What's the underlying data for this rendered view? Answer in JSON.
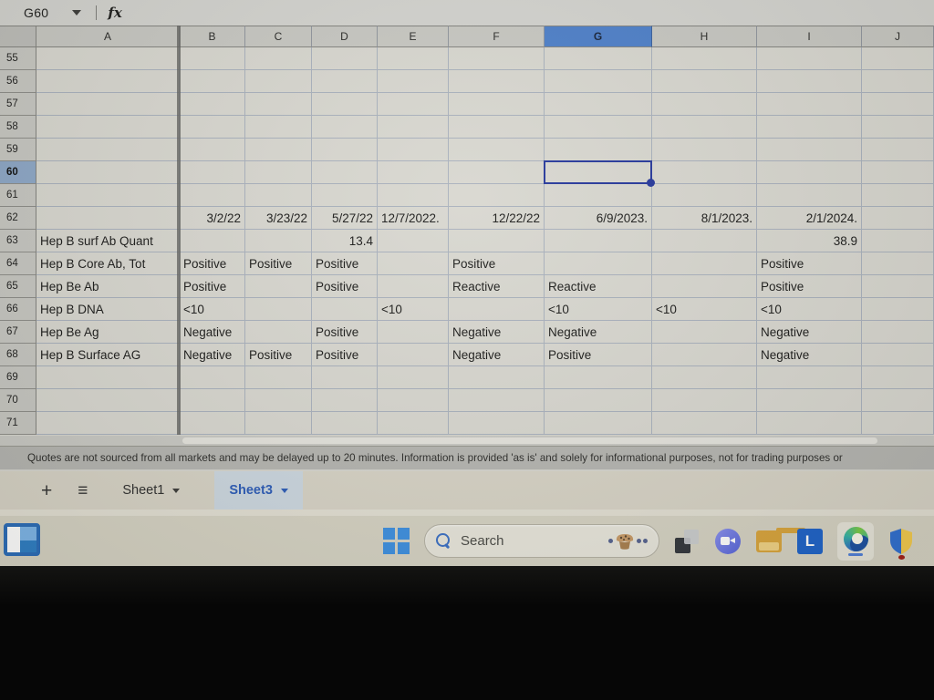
{
  "colors": {
    "accent_blue": "#4d7fc9",
    "selection_border": "#25379b",
    "row_header_selected": "#8da7c7",
    "tab_active_text": "#2b5bb7",
    "tab_active_bg": "#ccd7e0",
    "windows_blue": "#3d8fe0"
  },
  "formula_bar": {
    "namebox_value": "G60",
    "fx_label": "fx"
  },
  "sheet": {
    "columns": [
      "A",
      "B",
      "C",
      "D",
      "E",
      "F",
      "G",
      "H",
      "I",
      "J"
    ],
    "row_start": 55,
    "row_end": 71,
    "selected": {
      "col": "G",
      "row": 60,
      "cell_ref": "G60"
    },
    "frozen_after": "A",
    "cells": {
      "B62": "3/2/22",
      "C62": "3/23/22",
      "D62": "5/27/22",
      "E62": "12/7/2022.",
      "F62": "12/22/22",
      "G62": "6/9/2023.",
      "H62": "8/1/2023.",
      "I62": "2/1/2024.",
      "A63": "Hep B surf Ab Quant",
      "D63": "13.4",
      "I63": "38.9",
      "A64": "Hep B Core Ab, Tot",
      "B64": "Positive",
      "C64": "Positive",
      "D64": "Positive",
      "F64": "Positive",
      "I64": "Positive",
      "A65": "Hep Be Ab",
      "B65": "Positive",
      "D65": "Positive",
      "F65": "Reactive",
      "G65": "Reactive",
      "I65": "Positive",
      "A66": "Hep B DNA",
      "B66": "<10",
      "E66": "<10",
      "G66": "<10",
      "H66": "<10",
      "I66": "<10",
      "A67": "Hep Be Ag",
      "B67": "Negative",
      "D67": "Positive",
      "F67": "Negative",
      "G67": "Negative",
      "I67": "Negative",
      "A68": "Hep B Surface AG",
      "B68": "Negative",
      "C68": "Positive",
      "D68": "Positive",
      "F68": "Negative",
      "G68": "Positive",
      "I68": "Negative"
    },
    "right_aligned": [
      "B62",
      "C62",
      "D62",
      "F62",
      "G62",
      "H62",
      "I62",
      "D63",
      "I63"
    ]
  },
  "disclaimer": "Quotes are not sourced from all markets and may be delayed up to 20 minutes. Information is provided 'as is' and solely for informational purposes, not for trading purposes or",
  "sheet_tabs": {
    "add_label": "+",
    "all_sheets_icon": "≡",
    "tabs": [
      {
        "label": "Sheet1",
        "active": false
      },
      {
        "label": "Sheet3",
        "active": true
      }
    ]
  },
  "taskbar": {
    "search_placeholder": "Search",
    "l_app_letter": "L"
  }
}
